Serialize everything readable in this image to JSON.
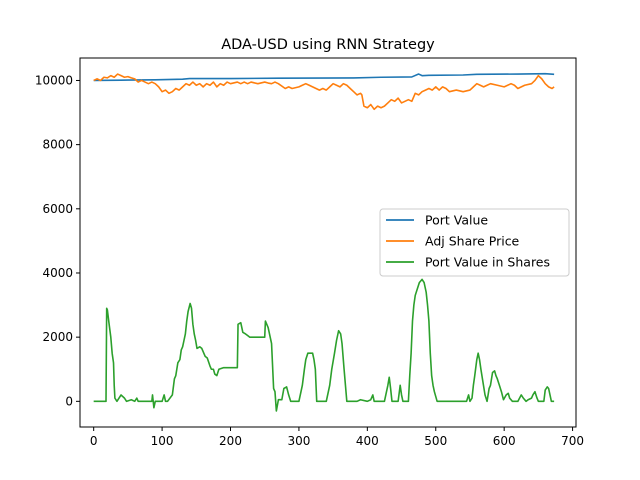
{
  "chart_data": {
    "type": "line",
    "title": "ADA-USD using RNN Strategy",
    "xlabel": "",
    "ylabel": "",
    "xlim": [
      -20,
      705
    ],
    "ylim": [
      -800,
      10700
    ],
    "xticks": [
      0,
      100,
      200,
      300,
      400,
      500,
      600,
      700
    ],
    "yticks": [
      0,
      2000,
      4000,
      6000,
      8000,
      10000
    ],
    "grid": false,
    "legend_position": "center-right",
    "series": [
      {
        "name": "Port Value",
        "color": "#1f77b4",
        "points": [
          [
            0,
            10000
          ],
          [
            40,
            10010
          ],
          [
            90,
            10020
          ],
          [
            130,
            10040
          ],
          [
            140,
            10060
          ],
          [
            200,
            10060
          ],
          [
            270,
            10070
          ],
          [
            380,
            10080
          ],
          [
            420,
            10100
          ],
          [
            465,
            10110
          ],
          [
            475,
            10200
          ],
          [
            480,
            10150
          ],
          [
            490,
            10160
          ],
          [
            540,
            10170
          ],
          [
            560,
            10190
          ],
          [
            620,
            10200
          ],
          [
            660,
            10210
          ],
          [
            673,
            10190
          ]
        ]
      },
      {
        "name": "Adj Share Price",
        "color": "#ff7f0e",
        "points": [
          [
            0,
            10000
          ],
          [
            5,
            10050
          ],
          [
            10,
            10000
          ],
          [
            15,
            10100
          ],
          [
            20,
            10080
          ],
          [
            25,
            10150
          ],
          [
            30,
            10100
          ],
          [
            35,
            10200
          ],
          [
            40,
            10150
          ],
          [
            45,
            10100
          ],
          [
            50,
            10120
          ],
          [
            55,
            10080
          ],
          [
            60,
            10050
          ],
          [
            65,
            9950
          ],
          [
            70,
            10000
          ],
          [
            75,
            9950
          ],
          [
            80,
            9900
          ],
          [
            85,
            9950
          ],
          [
            90,
            9900
          ],
          [
            95,
            9800
          ],
          [
            100,
            9650
          ],
          [
            105,
            9700
          ],
          [
            110,
            9600
          ],
          [
            115,
            9650
          ],
          [
            120,
            9750
          ],
          [
            125,
            9700
          ],
          [
            130,
            9800
          ],
          [
            135,
            9900
          ],
          [
            140,
            9850
          ],
          [
            145,
            9950
          ],
          [
            150,
            9850
          ],
          [
            155,
            9900
          ],
          [
            160,
            9800
          ],
          [
            165,
            9900
          ],
          [
            170,
            9850
          ],
          [
            175,
            9950
          ],
          [
            180,
            9800
          ],
          [
            185,
            9900
          ],
          [
            190,
            9850
          ],
          [
            195,
            9950
          ],
          [
            200,
            9900
          ],
          [
            210,
            9950
          ],
          [
            215,
            9900
          ],
          [
            220,
            9950
          ],
          [
            225,
            9900
          ],
          [
            230,
            9950
          ],
          [
            240,
            9900
          ],
          [
            250,
            9950
          ],
          [
            255,
            9920
          ],
          [
            260,
            9900
          ],
          [
            265,
            9950
          ],
          [
            270,
            9900
          ],
          [
            280,
            9750
          ],
          [
            285,
            9800
          ],
          [
            290,
            9750
          ],
          [
            300,
            9800
          ],
          [
            305,
            9850
          ],
          [
            310,
            9900
          ],
          [
            315,
            9850
          ],
          [
            320,
            9800
          ],
          [
            330,
            9700
          ],
          [
            335,
            9750
          ],
          [
            340,
            9700
          ],
          [
            345,
            9800
          ],
          [
            350,
            9900
          ],
          [
            355,
            9850
          ],
          [
            360,
            9800
          ],
          [
            365,
            9900
          ],
          [
            370,
            9850
          ],
          [
            375,
            9750
          ],
          [
            380,
            9650
          ],
          [
            385,
            9550
          ],
          [
            390,
            9600
          ],
          [
            392,
            9550
          ],
          [
            395,
            9200
          ],
          [
            400,
            9150
          ],
          [
            405,
            9250
          ],
          [
            410,
            9100
          ],
          [
            415,
            9200
          ],
          [
            420,
            9150
          ],
          [
            425,
            9200
          ],
          [
            430,
            9300
          ],
          [
            435,
            9400
          ],
          [
            440,
            9350
          ],
          [
            445,
            9450
          ],
          [
            450,
            9300
          ],
          [
            455,
            9350
          ],
          [
            460,
            9400
          ],
          [
            465,
            9350
          ],
          [
            470,
            9600
          ],
          [
            475,
            9550
          ],
          [
            480,
            9650
          ],
          [
            485,
            9700
          ],
          [
            490,
            9750
          ],
          [
            495,
            9700
          ],
          [
            500,
            9800
          ],
          [
            505,
            9700
          ],
          [
            510,
            9800
          ],
          [
            515,
            9750
          ],
          [
            520,
            9650
          ],
          [
            530,
            9700
          ],
          [
            540,
            9650
          ],
          [
            550,
            9700
          ],
          [
            555,
            9800
          ],
          [
            560,
            9900
          ],
          [
            565,
            9850
          ],
          [
            570,
            9800
          ],
          [
            575,
            9850
          ],
          [
            580,
            9900
          ],
          [
            590,
            9850
          ],
          [
            600,
            9800
          ],
          [
            610,
            9900
          ],
          [
            615,
            9850
          ],
          [
            620,
            9750
          ],
          [
            630,
            9850
          ],
          [
            640,
            9900
          ],
          [
            645,
            10000
          ],
          [
            650,
            10150
          ],
          [
            655,
            10050
          ],
          [
            660,
            9900
          ],
          [
            665,
            9800
          ],
          [
            670,
            9750
          ],
          [
            673,
            9800
          ]
        ]
      },
      {
        "name": "Port Value in Shares",
        "color": "#2ca02c",
        "points": [
          [
            0,
            0
          ],
          [
            18,
            0
          ],
          [
            19,
            2900
          ],
          [
            20,
            2850
          ],
          [
            22,
            2500
          ],
          [
            25,
            2000
          ],
          [
            27,
            1500
          ],
          [
            29,
            1200
          ],
          [
            30,
            500
          ],
          [
            31,
            100
          ],
          [
            34,
            0
          ],
          [
            40,
            200
          ],
          [
            45,
            100
          ],
          [
            48,
            0
          ],
          [
            55,
            50
          ],
          [
            60,
            0
          ],
          [
            63,
            100
          ],
          [
            65,
            0
          ],
          [
            75,
            0
          ],
          [
            85,
            0
          ],
          [
            86,
            200
          ],
          [
            87,
            0
          ],
          [
            88,
            -200
          ],
          [
            90,
            0
          ],
          [
            100,
            0
          ],
          [
            103,
            200
          ],
          [
            105,
            0
          ],
          [
            108,
            0
          ],
          [
            115,
            200
          ],
          [
            118,
            700
          ],
          [
            120,
            800
          ],
          [
            123,
            1200
          ],
          [
            126,
            1300
          ],
          [
            128,
            1600
          ],
          [
            130,
            1700
          ],
          [
            132,
            1900
          ],
          [
            134,
            2100
          ],
          [
            136,
            2500
          ],
          [
            138,
            2800
          ],
          [
            141,
            3050
          ],
          [
            143,
            2900
          ],
          [
            145,
            2400
          ],
          [
            147,
            2100
          ],
          [
            149,
            1900
          ],
          [
            151,
            1650
          ],
          [
            155,
            1700
          ],
          [
            158,
            1650
          ],
          [
            163,
            1400
          ],
          [
            166,
            1350
          ],
          [
            170,
            1100
          ],
          [
            172,
            1000
          ],
          [
            175,
            1000
          ],
          [
            177,
            850
          ],
          [
            180,
            800
          ],
          [
            183,
            1000
          ],
          [
            190,
            1050
          ],
          [
            200,
            1050
          ],
          [
            210,
            1050
          ],
          [
            211,
            2400
          ],
          [
            215,
            2450
          ],
          [
            218,
            2150
          ],
          [
            222,
            2100
          ],
          [
            225,
            2050
          ],
          [
            228,
            2000
          ],
          [
            232,
            2000
          ],
          [
            240,
            2000
          ],
          [
            250,
            2000
          ],
          [
            251,
            2500
          ],
          [
            255,
            2300
          ],
          [
            260,
            1800
          ],
          [
            263,
            400
          ],
          [
            265,
            300
          ],
          [
            267,
            -300
          ],
          [
            270,
            50
          ],
          [
            275,
            50
          ],
          [
            278,
            400
          ],
          [
            282,
            450
          ],
          [
            285,
            200
          ],
          [
            288,
            0
          ],
          [
            300,
            0
          ],
          [
            305,
            500
          ],
          [
            308,
            1000
          ],
          [
            310,
            1300
          ],
          [
            313,
            1500
          ],
          [
            320,
            1500
          ],
          [
            322,
            1300
          ],
          [
            324,
            1000
          ],
          [
            326,
            0
          ],
          [
            330,
            0
          ],
          [
            340,
            0
          ],
          [
            345,
            500
          ],
          [
            348,
            1000
          ],
          [
            352,
            1500
          ],
          [
            355,
            1900
          ],
          [
            358,
            2200
          ],
          [
            361,
            2100
          ],
          [
            363,
            1800
          ],
          [
            366,
            1000
          ],
          [
            368,
            500
          ],
          [
            370,
            0
          ],
          [
            378,
            0
          ],
          [
            385,
            0
          ],
          [
            390,
            50
          ],
          [
            400,
            0
          ],
          [
            405,
            50
          ],
          [
            408,
            200
          ],
          [
            410,
            0
          ],
          [
            418,
            0
          ],
          [
            425,
            0
          ],
          [
            430,
            500
          ],
          [
            432,
            750
          ],
          [
            434,
            400
          ],
          [
            436,
            0
          ],
          [
            445,
            0
          ],
          [
            448,
            500
          ],
          [
            450,
            200
          ],
          [
            452,
            0
          ],
          [
            460,
            0
          ],
          [
            462,
            800
          ],
          [
            464,
            1500
          ],
          [
            466,
            2500
          ],
          [
            468,
            3000
          ],
          [
            470,
            3300
          ],
          [
            473,
            3500
          ],
          [
            476,
            3700
          ],
          [
            480,
            3800
          ],
          [
            483,
            3700
          ],
          [
            486,
            3400
          ],
          [
            488,
            3000
          ],
          [
            490,
            2500
          ],
          [
            492,
            1500
          ],
          [
            494,
            800
          ],
          [
            496,
            500
          ],
          [
            498,
            300
          ],
          [
            502,
            0
          ],
          [
            515,
            0
          ],
          [
            525,
            0
          ],
          [
            530,
            0
          ],
          [
            545,
            0
          ],
          [
            548,
            200
          ],
          [
            550,
            0
          ],
          [
            553,
            100
          ],
          [
            555,
            500
          ],
          [
            557,
            800
          ],
          [
            560,
            1300
          ],
          [
            562,
            1500
          ],
          [
            564,
            1300
          ],
          [
            566,
            1000
          ],
          [
            569,
            600
          ],
          [
            572,
            200
          ],
          [
            575,
            0
          ],
          [
            578,
            400
          ],
          [
            580,
            500
          ],
          [
            583,
            900
          ],
          [
            586,
            950
          ],
          [
            588,
            800
          ],
          [
            590,
            700
          ],
          [
            593,
            500
          ],
          [
            596,
            300
          ],
          [
            599,
            50
          ],
          [
            603,
            200
          ],
          [
            606,
            250
          ],
          [
            608,
            100
          ],
          [
            612,
            0
          ],
          [
            620,
            0
          ],
          [
            625,
            200
          ],
          [
            628,
            100
          ],
          [
            632,
            0
          ],
          [
            635,
            50
          ],
          [
            640,
            100
          ],
          [
            642,
            200
          ],
          [
            645,
            300
          ],
          [
            648,
            100
          ],
          [
            650,
            0
          ],
          [
            655,
            0
          ],
          [
            658,
            0
          ],
          [
            660,
            350
          ],
          [
            663,
            450
          ],
          [
            665,
            400
          ],
          [
            667,
            200
          ],
          [
            669,
            0
          ],
          [
            673,
            0
          ]
        ]
      }
    ]
  }
}
